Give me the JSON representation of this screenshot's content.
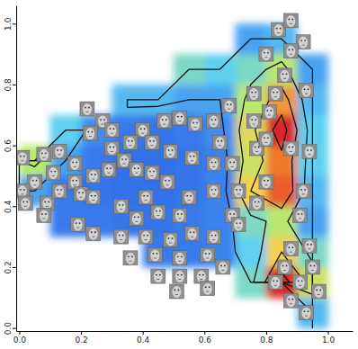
{
  "chart_data": {
    "type": "heatmap",
    "xlim": [
      -0.01,
      1.08
    ],
    "ylim": [
      -0.01,
      1.06
    ],
    "xticks": [
      {
        "value": 0,
        "label": "0.0"
      },
      0.2,
      0.4,
      0.6,
      0.8,
      {
        "value": 1,
        "label": "1.0"
      }
    ],
    "yticks": [
      {
        "value": 0,
        "label": "0.0"
      },
      0.2,
      0.4,
      0.6,
      0.8,
      {
        "value": 1,
        "label": "1.0"
      }
    ],
    "x_bins": [
      0,
      0.1,
      0.2,
      0.3,
      0.4,
      0.5,
      0.6,
      0.7,
      0.8,
      0.9,
      1.0,
      1.1
    ],
    "y_bins": [
      0,
      0.1,
      0.2,
      0.3,
      0.4,
      0.5,
      0.6,
      0.7,
      0.8,
      0.9,
      1.0,
      1.1
    ],
    "z": [
      [
        null,
        null,
        null,
        null,
        null,
        null,
        null,
        null,
        null,
        0.35,
        null
      ],
      [
        null,
        null,
        null,
        null,
        null,
        null,
        null,
        0.45,
        1.0,
        0.6,
        null
      ],
      [
        null,
        null,
        null,
        null,
        0.15,
        0.15,
        0.2,
        0.4,
        0.7,
        0.45,
        null
      ],
      [
        null,
        0.15,
        0.15,
        0.12,
        0.12,
        0.15,
        0.2,
        0.45,
        0.55,
        0.3,
        null
      ],
      [
        0.3,
        0.15,
        0.12,
        0.1,
        0.1,
        0.12,
        0.2,
        0.7,
        0.9,
        0.35,
        null
      ],
      [
        0.55,
        0.3,
        0.15,
        0.1,
        0.1,
        0.12,
        0.2,
        0.6,
        0.85,
        0.4,
        null
      ],
      [
        null,
        0.4,
        0.25,
        0.15,
        0.12,
        0.15,
        0.25,
        0.65,
        1.0,
        0.4,
        null
      ],
      [
        null,
        null,
        null,
        0.35,
        0.35,
        0.3,
        0.3,
        0.55,
        0.8,
        0.35,
        null
      ],
      [
        null,
        null,
        null,
        null,
        null,
        0.45,
        0.4,
        0.45,
        0.55,
        0.3,
        null
      ],
      [
        null,
        null,
        null,
        null,
        null,
        null,
        null,
        0.3,
        0.35,
        null,
        null
      ],
      [
        null,
        null,
        null,
        null,
        null,
        null,
        null,
        null,
        null,
        null,
        null
      ]
    ],
    "zlim": [
      0,
      1
    ],
    "contour_levels": [
      0.3,
      0.5,
      0.7,
      0.9
    ],
    "points": {
      "marker": "face",
      "x": [
        0.84,
        0.88,
        0.92,
        0.8,
        0.88,
        0.86,
        0.93,
        0.83,
        0.76,
        0.68,
        0.81,
        0.76,
        0.88,
        0.94,
        0.92,
        0.91,
        0.8,
        0.77,
        0.71,
        0.69,
        0.65,
        0.63,
        0.57,
        0.52,
        0.47,
        0.4,
        0.43,
        0.49,
        0.56,
        0.63,
        0.69,
        0.22,
        0.27,
        0.23,
        0.3,
        0.36,
        0.3,
        0.34,
        0.38,
        0.43,
        0.48,
        0.55,
        0.63,
        0.01,
        0.08,
        0.13,
        0.18,
        0.11,
        0.05,
        0.01,
        0.02,
        0.09,
        0.13,
        0.18,
        0.2,
        0.24,
        0.29,
        0.08,
        0.24,
        0.33,
        0.41,
        0.45,
        0.52,
        0.38,
        0.19,
        0.24,
        0.33,
        0.41,
        0.49,
        0.56,
        0.63,
        0.61,
        0.52,
        0.44,
        0.36,
        0.45,
        0.52,
        0.59,
        0.66,
        0.51,
        0.61,
        0.88,
        0.94,
        0.86,
        0.95,
        0.91,
        0.83,
        0.97,
        0.88,
        0.93,
        0.71,
        0.77,
        0.8
      ],
      "y": [
        0.98,
        1.01,
        0.94,
        0.9,
        0.91,
        0.83,
        0.78,
        0.77,
        0.77,
        0.73,
        0.71,
        0.68,
        0.59,
        0.58,
        0.45,
        0.37,
        0.48,
        0.41,
        0.45,
        0.37,
        0.61,
        0.68,
        0.67,
        0.69,
        0.68,
        0.65,
        0.61,
        0.58,
        0.56,
        0.54,
        0.54,
        0.72,
        0.68,
        0.64,
        0.65,
        0.61,
        0.59,
        0.55,
        0.52,
        0.51,
        0.48,
        0.43,
        0.45,
        0.56,
        0.57,
        0.58,
        0.54,
        0.51,
        0.48,
        0.45,
        0.41,
        0.41,
        0.45,
        0.48,
        0.44,
        0.5,
        0.52,
        0.37,
        0.43,
        0.4,
        0.43,
        0.38,
        0.37,
        0.36,
        0.34,
        0.31,
        0.3,
        0.3,
        0.29,
        0.31,
        0.3,
        0.24,
        0.23,
        0.24,
        0.23,
        0.17,
        0.17,
        0.17,
        0.2,
        0.12,
        0.13,
        0.26,
        0.27,
        0.2,
        0.2,
        0.15,
        0.15,
        0.12,
        0.09,
        0.05,
        0.34,
        0.59,
        0.62
      ]
    }
  }
}
